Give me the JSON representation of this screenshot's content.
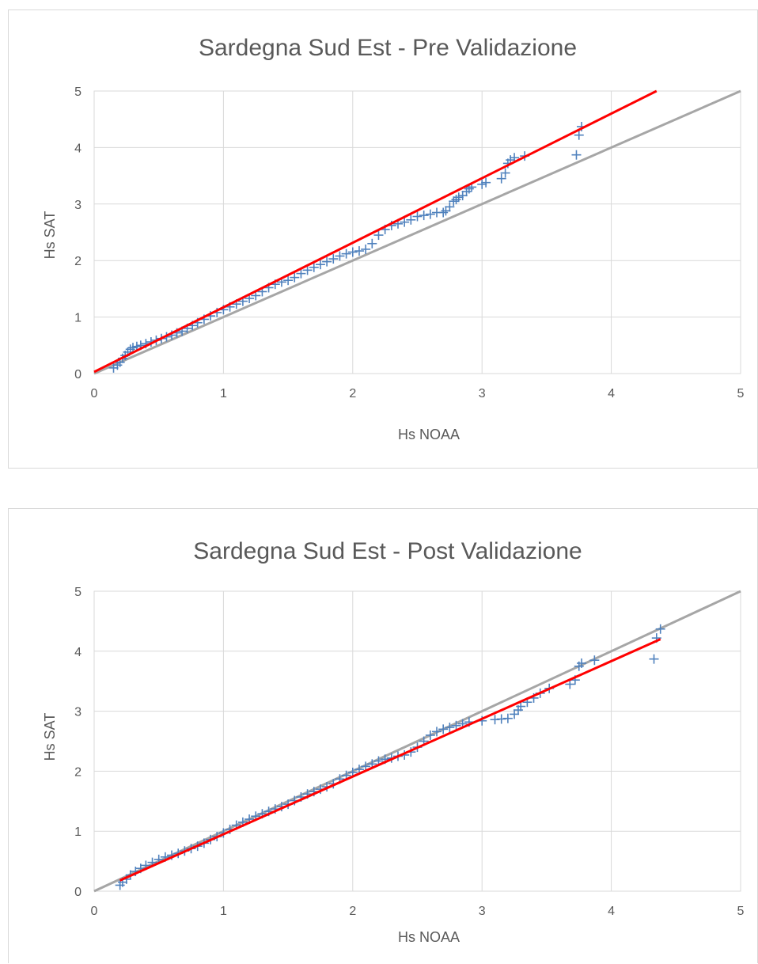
{
  "colors": {
    "points": "#4f81bd",
    "fit_line": "#ff0000",
    "identity_line": "#a6a6a6",
    "grid": "#d9d9d9",
    "text": "#595959"
  },
  "chart_data": [
    {
      "type": "scatter",
      "title": "Sardegna Sud Est - Pre Validazione",
      "xlabel": "Hs NOAA",
      "ylabel": "Hs SAT",
      "xlim": [
        0,
        5
      ],
      "ylim": [
        0,
        5
      ],
      "xticks": [
        "0",
        "1",
        "2",
        "3",
        "4",
        "5"
      ],
      "yticks": [
        "0",
        "1",
        "2",
        "3",
        "4",
        "5"
      ],
      "grid": true,
      "marker": "plus",
      "series": [
        {
          "marker": "plus",
          "x": [
            0.15,
            0.18,
            0.2,
            0.22,
            0.24,
            0.26,
            0.28,
            0.3,
            0.33,
            0.36,
            0.4,
            0.44,
            0.48,
            0.52,
            0.56,
            0.6,
            0.64,
            0.68,
            0.72,
            0.76,
            0.8,
            0.85,
            0.9,
            0.95,
            1.0,
            1.05,
            1.1,
            1.15,
            1.2,
            1.25,
            1.3,
            1.35,
            1.4,
            1.45,
            1.5,
            1.55,
            1.6,
            1.65,
            1.7,
            1.75,
            1.8,
            1.85,
            1.9,
            1.95,
            2.0,
            2.05,
            2.1,
            2.15,
            2.2,
            2.25,
            2.3,
            2.35,
            2.4,
            2.45,
            2.5,
            2.55,
            2.6,
            2.65,
            2.7,
            2.72,
            2.75,
            2.78,
            2.8,
            2.82,
            2.85,
            2.88,
            2.9,
            2.92,
            3.0,
            3.03,
            3.15,
            3.18,
            3.2,
            3.22,
            3.25,
            3.33,
            3.73,
            3.75,
            3.77
          ],
          "y": [
            0.1,
            0.15,
            0.2,
            0.27,
            0.32,
            0.38,
            0.43,
            0.46,
            0.48,
            0.5,
            0.53,
            0.56,
            0.59,
            0.62,
            0.65,
            0.68,
            0.72,
            0.75,
            0.8,
            0.85,
            0.9,
            0.96,
            1.02,
            1.08,
            1.13,
            1.18,
            1.23,
            1.28,
            1.33,
            1.38,
            1.45,
            1.52,
            1.58,
            1.62,
            1.65,
            1.7,
            1.77,
            1.83,
            1.88,
            1.93,
            1.98,
            2.03,
            2.08,
            2.12,
            2.15,
            2.17,
            2.2,
            2.3,
            2.45,
            2.55,
            2.62,
            2.65,
            2.68,
            2.72,
            2.78,
            2.8,
            2.82,
            2.85,
            2.85,
            2.88,
            2.95,
            3.05,
            3.08,
            3.12,
            3.15,
            3.22,
            3.27,
            3.3,
            3.35,
            3.38,
            3.45,
            3.55,
            3.72,
            3.78,
            3.82,
            3.85,
            3.87,
            4.22,
            4.37
          ]
        }
      ],
      "lines": [
        {
          "role": "fit",
          "x": [
            0,
            4.35
          ],
          "y": [
            0.03,
            5.0
          ]
        },
        {
          "role": "identity",
          "x": [
            0,
            5
          ],
          "y": [
            0,
            5
          ]
        }
      ]
    },
    {
      "type": "scatter",
      "title": "Sardegna Sud Est  - Post Validazione",
      "xlabel": "Hs NOAA",
      "ylabel": "Hs SAT",
      "xlim": [
        0,
        5
      ],
      "ylim": [
        0,
        5
      ],
      "xticks": [
        "0",
        "1",
        "2",
        "3",
        "4",
        "5"
      ],
      "yticks": [
        "0",
        "1",
        "2",
        "3",
        "4",
        "5"
      ],
      "grid": true,
      "marker": "plus",
      "series": [
        {
          "marker": "plus",
          "x": [
            0.2,
            0.22,
            0.25,
            0.28,
            0.32,
            0.36,
            0.4,
            0.45,
            0.5,
            0.55,
            0.6,
            0.65,
            0.7,
            0.75,
            0.8,
            0.85,
            0.9,
            0.95,
            1.0,
            1.05,
            1.1,
            1.15,
            1.2,
            1.25,
            1.3,
            1.35,
            1.4,
            1.45,
            1.5,
            1.55,
            1.6,
            1.65,
            1.7,
            1.75,
            1.8,
            1.85,
            1.9,
            1.95,
            2.0,
            2.05,
            2.1,
            2.15,
            2.2,
            2.25,
            2.3,
            2.35,
            2.4,
            2.45,
            2.5,
            2.55,
            2.6,
            2.65,
            2.7,
            2.75,
            2.8,
            2.85,
            2.9,
            3.0,
            3.1,
            3.15,
            3.2,
            3.25,
            3.28,
            3.3,
            3.35,
            3.4,
            3.45,
            3.52,
            3.68,
            3.72,
            3.75,
            3.77,
            3.87,
            4.33,
            4.35,
            4.38
          ],
          "y": [
            0.1,
            0.15,
            0.2,
            0.27,
            0.33,
            0.38,
            0.43,
            0.48,
            0.53,
            0.57,
            0.6,
            0.63,
            0.67,
            0.71,
            0.75,
            0.8,
            0.86,
            0.91,
            0.97,
            1.03,
            1.1,
            1.15,
            1.2,
            1.25,
            1.29,
            1.33,
            1.37,
            1.41,
            1.45,
            1.51,
            1.57,
            1.62,
            1.66,
            1.7,
            1.74,
            1.79,
            1.87,
            1.93,
            1.98,
            2.03,
            2.08,
            2.12,
            2.17,
            2.2,
            2.22,
            2.25,
            2.27,
            2.32,
            2.4,
            2.5,
            2.6,
            2.66,
            2.7,
            2.73,
            2.76,
            2.79,
            2.82,
            2.84,
            2.86,
            2.87,
            2.88,
            2.95,
            3.02,
            3.08,
            3.15,
            3.22,
            3.3,
            3.38,
            3.45,
            3.52,
            3.75,
            3.8,
            3.85,
            3.87,
            4.22,
            4.37
          ]
        }
      ],
      "lines": [
        {
          "role": "fit",
          "x": [
            0.2,
            4.38
          ],
          "y": [
            0.18,
            4.2
          ]
        },
        {
          "role": "identity",
          "x": [
            0,
            5
          ],
          "y": [
            0,
            5
          ]
        }
      ]
    }
  ]
}
